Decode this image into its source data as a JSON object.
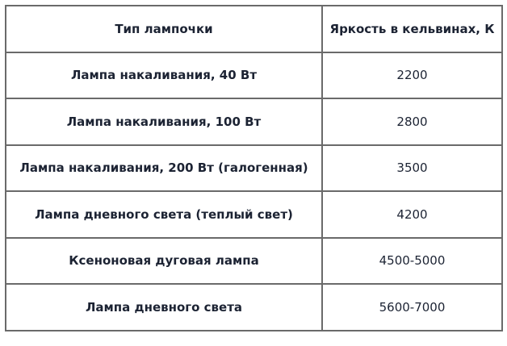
{
  "table": {
    "headers": [
      "Тип лампочки",
      "Яркость в кельвинах, К"
    ],
    "rows": [
      [
        "Лампа накаливания, 40 Вт",
        "2200"
      ],
      [
        "Лампа накаливания, 100 Вт",
        "2800"
      ],
      [
        "Лампа накаливания, 200 Вт (галогенная)",
        "3500"
      ],
      [
        "Лампа дневного света (теплый свет)",
        "4200"
      ],
      [
        "Ксеноновая дуговая лампа",
        "4500-5000"
      ],
      [
        "Лампа дневного света",
        "5600-7000"
      ]
    ]
  }
}
